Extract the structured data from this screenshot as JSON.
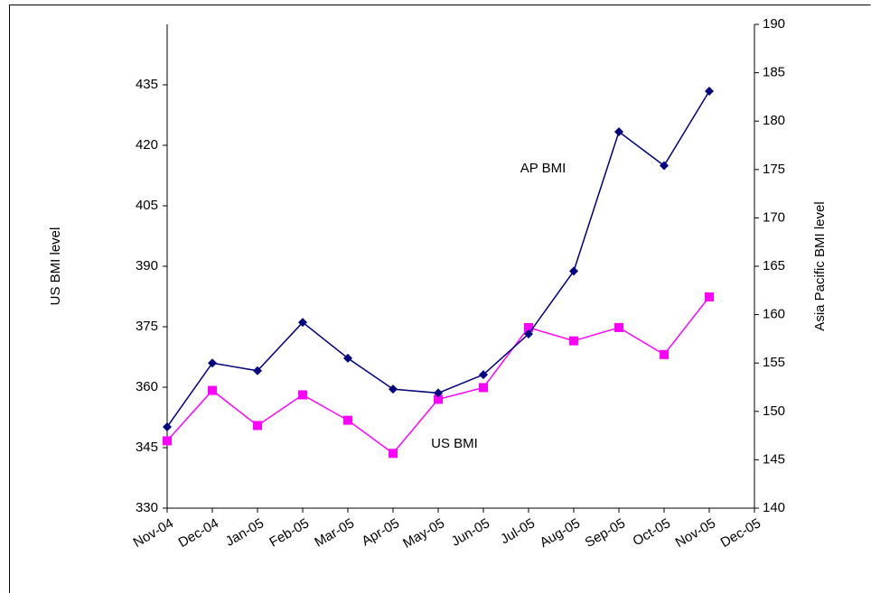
{
  "chart_data": {
    "type": "line",
    "y_label": "US BMI level",
    "y2_label": "Asia Pacific BMI level",
    "categories": [
      "Nov-04",
      "Dec-04",
      "Jan-05",
      "Feb-05",
      "Mar-05",
      "Apr-05",
      "May-05",
      "Jun-05",
      "Jul-05",
      "Aug-05",
      "Sep-05",
      "Oct-05",
      "Nov-05",
      "Dec-05"
    ],
    "series": [
      {
        "name": "US BMI",
        "color": "#ff00ff",
        "marker": "square",
        "axis": "y",
        "values": [
          346.7,
          359.2,
          350.5,
          358.1,
          351.8,
          343.6,
          357,
          359.9,
          374.8,
          371.5,
          374.8,
          368.1,
          382.4,
          null
        ]
      },
      {
        "name": "AP BMI",
        "color": "#000080",
        "marker": "diamond",
        "axis": "y2",
        "values": [
          148.4,
          155.0,
          154.2,
          159.2,
          155.5,
          152.3,
          151.9,
          153.8,
          158.0,
          164.5,
          178.9,
          175.4,
          183.1,
          null
        ]
      }
    ],
    "ylim": [
      330,
      450
    ],
    "yticks": [
      330,
      345,
      360,
      375,
      390,
      405,
      420,
      435
    ],
    "y2lim": [
      140,
      190
    ],
    "y2ticks": [
      140,
      145,
      150,
      155,
      160,
      165,
      170,
      175,
      180,
      185,
      190
    ],
    "grid": false,
    "legend": false
  }
}
